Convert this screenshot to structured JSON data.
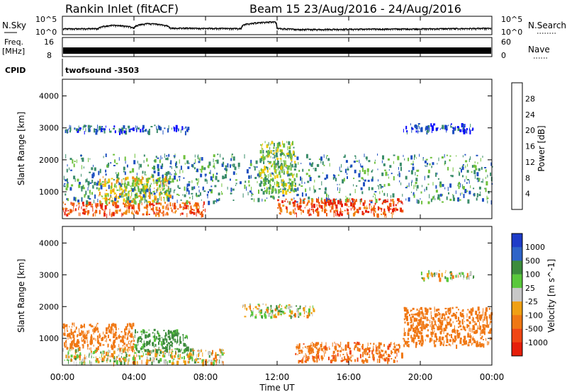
{
  "header": {
    "title": "Rankin Inlet (fitACF)",
    "beam_info": "Beam 15 23/Aug/2016 - 24/Aug/2016"
  },
  "nsky_panel": {
    "left_label": "N.Sky",
    "right_label": "N.Search",
    "ticks": [
      "10^5",
      "10^0"
    ]
  },
  "freq_panel": {
    "left_label_line1": "Freq.",
    "left_label_line2": "[MHz]",
    "left_ticks": [
      "16",
      "8"
    ],
    "right_label": "Nave",
    "right_ticks": [
      "60",
      "0"
    ]
  },
  "cpid_panel": {
    "left_label": "CPID",
    "value": "twofsound -3503"
  },
  "x_axis": {
    "label": "Time UT",
    "ticks": [
      "00:00",
      "04:00",
      "08:00",
      "12:00",
      "16:00",
      "20:00",
      "00:00"
    ]
  },
  "colors": {
    "power": [
      "#0000ff",
      "#1e50c0",
      "#3a8c6a",
      "#6ec03c",
      "#f0c800",
      "#f08c14",
      "#f05a0a",
      "#e61e0a"
    ],
    "velocity_pos": [
      "#1e3cc8",
      "#2e64c8",
      "#3c8c3c",
      "#5ac83c"
    ],
    "velocity_neg": [
      "#f0a014",
      "#f07814",
      "#f04614",
      "#e61e0a"
    ],
    "ground_scatter": "#c8c8c8"
  },
  "chart_data": [
    {
      "type": "line",
      "name": "nsky",
      "y_scale": "log",
      "ylim": [
        1,
        100000
      ],
      "x": [
        "00:00",
        "02:00",
        "02:50",
        "04:00",
        "04:50",
        "06:00",
        "08:00",
        "10:00",
        "11:50",
        "12:00",
        "13:00",
        "16:00",
        "20:00",
        "00:00"
      ],
      "values": [
        20,
        25,
        400,
        30,
        1500,
        40,
        30,
        25,
        6000,
        30,
        12,
        15,
        20,
        30
      ]
    },
    {
      "type": "bar",
      "name": "frequency",
      "ylim": [
        8,
        16
      ],
      "band": [
        10,
        12
      ]
    },
    {
      "type": "heatmap",
      "name": "power",
      "ylabel": "Slant Range [km]",
      "xlabel": "Time UT",
      "ylim": [
        180,
        4500
      ],
      "yticks": [
        1000,
        2000,
        3000,
        4000
      ],
      "colorbar_label": "Power [dB]",
      "colorbar_ticks": [
        4,
        8,
        12,
        16,
        20,
        24,
        28
      ],
      "regions": [
        {
          "t": [
            0,
            8
          ],
          "range": [
            300,
            700
          ],
          "level": 26
        },
        {
          "t": [
            2,
            6
          ],
          "range": [
            700,
            1500
          ],
          "level": 18
        },
        {
          "t": [
            0,
            24
          ],
          "range": [
            700,
            2200
          ],
          "level": 10
        },
        {
          "t": [
            0,
            7
          ],
          "range": [
            2900,
            3100
          ],
          "level": 6
        },
        {
          "t": [
            12,
            19
          ],
          "range": [
            300,
            800
          ],
          "level": 27
        },
        {
          "t": [
            11,
            13
          ],
          "range": [
            1000,
            2600
          ],
          "level": 14
        },
        {
          "t": [
            19,
            23
          ],
          "range": [
            2900,
            3150
          ],
          "level": 6
        }
      ]
    },
    {
      "type": "heatmap",
      "name": "velocity",
      "ylabel": "Slant Range [km]",
      "xlabel": "Time UT",
      "ylim": [
        180,
        4500
      ],
      "yticks": [
        1000,
        2000,
        3000,
        4000
      ],
      "colorbar_label": "Velocity [m s^-1]",
      "colorbar_ticks": [
        1000,
        500,
        100,
        25,
        -25,
        -100,
        -500,
        -1000
      ],
      "regions": [
        {
          "t": [
            0,
            4
          ],
          "range": [
            700,
            1500
          ],
          "level": -300
        },
        {
          "t": [
            0,
            9
          ],
          "range": [
            250,
            700
          ],
          "level": 0
        },
        {
          "t": [
            4,
            7
          ],
          "range": [
            600,
            1300
          ],
          "level": 200
        },
        {
          "t": [
            10,
            14
          ],
          "range": [
            1700,
            2100
          ],
          "level": 0
        },
        {
          "t": [
            13,
            19
          ],
          "range": [
            300,
            900
          ],
          "level": -400
        },
        {
          "t": [
            19,
            24
          ],
          "range": [
            800,
            2000
          ],
          "level": -300
        },
        {
          "t": [
            20,
            23
          ],
          "range": [
            2900,
            3150
          ],
          "level": 0
        }
      ]
    }
  ]
}
